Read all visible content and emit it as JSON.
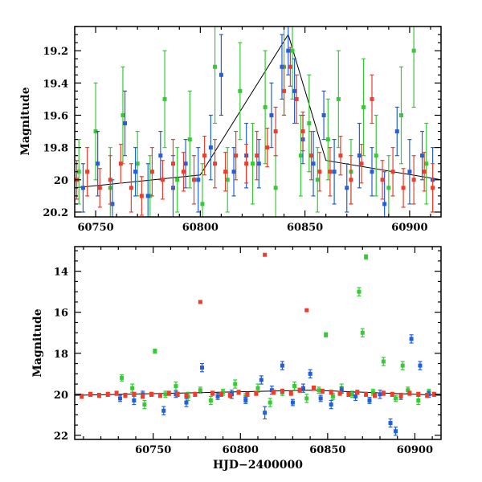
{
  "chart_data": [
    {
      "type": "scatter",
      "panel": "top",
      "xlabel": "",
      "ylabel": "Magnitude",
      "xlim": [
        60740,
        60915
      ],
      "ylim": [
        20.23,
        19.05
      ],
      "y_inverted": true,
      "error_bars": true,
      "grid": false,
      "xticks": [
        60750,
        60800,
        60850,
        60900
      ],
      "yticks": [
        19.2,
        19.4,
        19.6,
        19.8,
        20,
        20.2
      ],
      "xtick_labels": [
        "60750",
        "60800",
        "60850",
        "60900"
      ],
      "ytick_labels": [
        "19.2",
        "19.4",
        "19.6",
        "19.8",
        "20",
        "20.2"
      ],
      "trend_line": [
        [
          60740,
          20.05
        ],
        [
          60800,
          19.97
        ],
        [
          60842,
          19.1
        ],
        [
          60860,
          19.88
        ],
        [
          60915,
          20.0
        ]
      ],
      "series": [
        {
          "color": "#33cc33",
          "x": [
            60742,
            60750,
            60757,
            60763,
            60770,
            60776,
            60783,
            60789,
            60795,
            60801,
            60807,
            60813,
            60819,
            60825,
            60831,
            60836,
            60840,
            60844,
            60848,
            60852,
            60856,
            60861,
            60866,
            60872,
            60878,
            60884,
            60890,
            60896,
            60902,
            60908
          ],
          "y": [
            19.95,
            19.7,
            20.05,
            19.6,
            19.9,
            20.1,
            19.5,
            20.0,
            19.75,
            20.15,
            19.3,
            20.0,
            19.45,
            19.9,
            19.55,
            20.05,
            19.3,
            19.2,
            19.85,
            19.65,
            20.0,
            19.75,
            19.5,
            19.95,
            19.55,
            19.85,
            20.05,
            19.6,
            19.2,
            19.9
          ],
          "err": [
            0.2,
            0.3,
            0.25,
            0.3,
            0.2,
            0.25,
            0.3,
            0.2,
            0.3,
            0.25,
            0.35,
            0.2,
            0.3,
            0.25,
            0.35,
            0.2,
            0.3,
            0.3,
            0.25,
            0.3,
            0.2,
            0.25,
            0.3,
            0.2,
            0.3,
            0.25,
            0.2,
            0.3,
            0.35,
            0.25
          ]
        },
        {
          "color": "#1f5fe0",
          "x": [
            60744,
            60751,
            60758,
            60764,
            60769,
            60775,
            60781,
            60787,
            60793,
            60799,
            60805,
            60810,
            60816,
            60822,
            60828,
            60834,
            60839,
            60842,
            60845,
            60849,
            60854,
            60859,
            60864,
            60870,
            60876,
            60882,
            60888,
            60894,
            60900,
            60906,
            60911
          ],
          "y": [
            20.05,
            19.9,
            20.15,
            19.65,
            19.95,
            20.1,
            19.85,
            20.05,
            19.9,
            20.0,
            19.8,
            19.35,
            19.95,
            19.85,
            19.9,
            19.6,
            19.3,
            19.2,
            19.45,
            19.75,
            19.9,
            19.6,
            19.95,
            20.05,
            19.85,
            19.95,
            20.15,
            19.7,
            19.95,
            19.85,
            20.0
          ],
          "err": [
            0.15,
            0.2,
            0.15,
            0.2,
            0.15,
            0.2,
            0.15,
            0.2,
            0.15,
            0.2,
            0.2,
            0.25,
            0.15,
            0.2,
            0.15,
            0.2,
            0.2,
            0.15,
            0.2,
            0.15,
            0.2,
            0.15,
            0.2,
            0.15,
            0.2,
            0.15,
            0.2,
            0.15,
            0.2,
            0.15,
            0.2
          ]
        },
        {
          "color": "#f03c2a",
          "x": [
            60741,
            60746,
            60752,
            60757,
            60762,
            60767,
            60772,
            60777,
            60782,
            60787,
            60792,
            60797,
            60802,
            60807,
            60812,
            60817,
            60822,
            60827,
            60832,
            60836,
            60840,
            60843,
            60846,
            60849,
            60853,
            60857,
            60862,
            60867,
            60872,
            60877,
            60882,
            60887,
            60892,
            60897,
            60902,
            60907,
            60911
          ],
          "y": [
            20.0,
            19.95,
            20.05,
            20.0,
            19.9,
            20.05,
            20.1,
            19.95,
            20.0,
            19.9,
            19.95,
            20.0,
            19.85,
            19.9,
            19.95,
            19.85,
            19.9,
            19.85,
            19.8,
            19.7,
            19.45,
            19.3,
            19.5,
            19.7,
            19.85,
            19.95,
            19.95,
            19.85,
            20.0,
            19.9,
            19.5,
            20.0,
            19.95,
            20.05,
            20.0,
            19.95,
            20.05
          ],
          "err": [
            0.12,
            0.15,
            0.12,
            0.15,
            0.12,
            0.15,
            0.12,
            0.15,
            0.12,
            0.15,
            0.12,
            0.15,
            0.12,
            0.15,
            0.12,
            0.15,
            0.12,
            0.15,
            0.12,
            0.15,
            0.15,
            0.12,
            0.15,
            0.12,
            0.15,
            0.12,
            0.15,
            0.12,
            0.15,
            0.12,
            0.15,
            0.12,
            0.15,
            0.12,
            0.15,
            0.12,
            0.15
          ]
        }
      ]
    },
    {
      "type": "scatter",
      "panel": "bottom",
      "xlabel": "HJD−2400000",
      "ylabel": "Magnitude",
      "xlim": [
        60705,
        60915
      ],
      "ylim": [
        22.2,
        12.8
      ],
      "y_inverted": true,
      "error_bars": true,
      "grid": false,
      "xticks": [
        60750,
        60800,
        60850,
        60900
      ],
      "yticks": [
        14,
        16,
        18,
        20,
        22
      ],
      "xtick_labels": [
        "60750",
        "60800",
        "60850",
        "60900"
      ],
      "ytick_labels": [
        "14",
        "16",
        "18",
        "20",
        "22"
      ],
      "trend_line": [
        [
          60705,
          20.05
        ],
        [
          60842,
          19.8
        ],
        [
          60915,
          20.05
        ]
      ],
      "series": [
        {
          "color": "#33cc33",
          "x": [
            60732,
            60738,
            60745,
            60751,
            60757,
            60763,
            60770,
            60777,
            60783,
            60790,
            60797,
            60803,
            60810,
            60817,
            60824,
            60831,
            60838,
            60845,
            60849,
            60853,
            60858,
            60864,
            60868,
            60870,
            60872,
            60876,
            60882,
            60889,
            60893,
            60896,
            60902,
            60908
          ],
          "y": [
            19.2,
            19.7,
            20.5,
            17.9,
            20.0,
            19.6,
            20.1,
            19.8,
            20.3,
            19.9,
            19.5,
            20.1,
            19.7,
            20.4,
            19.9,
            19.6,
            20.2,
            19.8,
            17.1,
            20.1,
            19.7,
            20.0,
            15.0,
            17.0,
            13.3,
            19.9,
            18.4,
            20.2,
            18.6,
            19.8,
            20.3,
            19.9
          ],
          "err": [
            0.15,
            0.2,
            0.2,
            0.1,
            0.15,
            0.2,
            0.2,
            0.15,
            0.2,
            0.15,
            0.2,
            0.15,
            0.2,
            0.2,
            0.15,
            0.2,
            0.2,
            0.15,
            0.1,
            0.15,
            0.2,
            0.15,
            0.2,
            0.2,
            0.1,
            0.15,
            0.2,
            0.15,
            0.2,
            0.15,
            0.2,
            0.15
          ]
        },
        {
          "color": "#1f5fe0",
          "x": [
            60731,
            60739,
            60744,
            60756,
            60763,
            60769,
            60778,
            60787,
            60795,
            60803,
            60812,
            60814,
            60818,
            60824,
            60830,
            60836,
            60840,
            60846,
            60852,
            60858,
            60866,
            60874,
            60880,
            60886,
            60889,
            60892,
            60898,
            60903,
            60908
          ],
          "y": [
            20.2,
            20.3,
            20.0,
            20.8,
            20.0,
            20.4,
            18.7,
            20.1,
            20.0,
            20.3,
            19.3,
            20.9,
            19.8,
            18.6,
            20.4,
            19.7,
            19.0,
            20.2,
            20.5,
            19.8,
            20.1,
            20.3,
            20.0,
            21.4,
            21.8,
            20.1,
            17.3,
            18.6,
            20.0
          ],
          "err": [
            0.15,
            0.2,
            0.15,
            0.2,
            0.15,
            0.2,
            0.2,
            0.15,
            0.2,
            0.15,
            0.2,
            0.3,
            0.2,
            0.2,
            0.15,
            0.2,
            0.2,
            0.15,
            0.2,
            0.15,
            0.2,
            0.15,
            0.2,
            0.2,
            0.2,
            0.15,
            0.2,
            0.2,
            0.15
          ]
        },
        {
          "color": "#f03c2a",
          "x": [
            60709,
            60714,
            60719,
            60724,
            60729,
            60734,
            60739,
            60744,
            60749,
            60754,
            60759,
            60764,
            60769,
            60774,
            60777,
            60784,
            60789,
            60794,
            60799,
            60804,
            60809,
            60814,
            60819,
            60824,
            60829,
            60834,
            60838,
            60842,
            60847,
            60852,
            60857,
            60862,
            60867,
            60872,
            60877,
            60882,
            60887,
            60892,
            60897,
            60902,
            60907,
            60911
          ],
          "y": [
            20.1,
            20.0,
            20.05,
            20.0,
            19.95,
            20.05,
            20.0,
            20.1,
            20.0,
            20.05,
            19.95,
            20.0,
            20.05,
            20.0,
            15.5,
            19.95,
            20.0,
            20.05,
            19.9,
            20.0,
            19.95,
            13.2,
            19.9,
            19.85,
            19.95,
            19.8,
            15.9,
            19.7,
            19.85,
            19.9,
            19.95,
            20.0,
            19.9,
            20.0,
            20.05,
            19.95,
            20.0,
            20.05,
            19.95,
            20.0,
            20.05,
            20.0
          ],
          "err": [
            0.1,
            0.1,
            0.1,
            0.1,
            0.1,
            0.1,
            0.1,
            0.1,
            0.1,
            0.1,
            0.1,
            0.1,
            0.1,
            0.1,
            0.05,
            0.1,
            0.1,
            0.1,
            0.1,
            0.1,
            0.1,
            0.05,
            0.1,
            0.1,
            0.1,
            0.1,
            0.05,
            0.1,
            0.1,
            0.1,
            0.1,
            0.1,
            0.1,
            0.1,
            0.1,
            0.1,
            0.1,
            0.1,
            0.1,
            0.1,
            0.1,
            0.1
          ]
        }
      ]
    }
  ]
}
